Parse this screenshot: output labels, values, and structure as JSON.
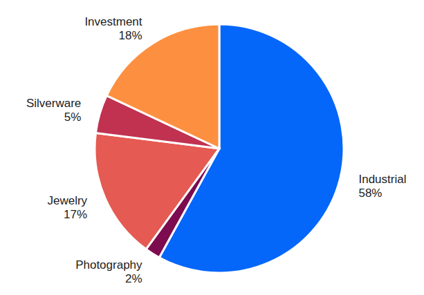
{
  "chart_data": {
    "type": "pie",
    "categories": [
      "Industrial",
      "Photography",
      "Jewelry",
      "Silverware",
      "Investment"
    ],
    "values": [
      58,
      2,
      17,
      5,
      18
    ],
    "value_labels": [
      "58%",
      "2%",
      "17%",
      "5%",
      "18%"
    ],
    "colors": [
      "#0566fa",
      "#7d0b4f",
      "#e55a52",
      "#c03250",
      "#fd9040"
    ]
  }
}
